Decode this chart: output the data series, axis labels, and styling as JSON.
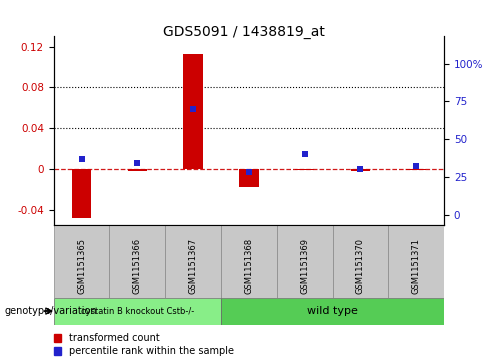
{
  "title": "GDS5091 / 1438819_at",
  "samples": [
    "GSM1151365",
    "GSM1151366",
    "GSM1151367",
    "GSM1151368",
    "GSM1151369",
    "GSM1151370",
    "GSM1151371"
  ],
  "transformed_count": [
    -0.048,
    -0.002,
    0.113,
    -0.018,
    -0.001,
    -0.002,
    -0.001
  ],
  "percentile_rank": [
    37,
    34,
    70,
    28,
    40,
    30,
    32
  ],
  "bar_color": "#cc0000",
  "dot_color": "#2222cc",
  "left_ylim": [
    -0.055,
    0.13
  ],
  "left_yticks": [
    -0.04,
    0.0,
    0.04,
    0.08,
    0.12
  ],
  "right_ylim": [
    -6.875,
    118.125
  ],
  "right_yticks": [
    0,
    25,
    50,
    75,
    100
  ],
  "right_yticklabels": [
    "0",
    "25",
    "50",
    "75",
    "100%"
  ],
  "dotted_lines": [
    0.04,
    0.08
  ],
  "group1_label": "cystatin B knockout Cstb-/-",
  "group2_label": "wild type",
  "group1_indices": [
    0,
    1,
    2
  ],
  "group2_indices": [
    3,
    4,
    5,
    6
  ],
  "group1_color": "#88ee88",
  "group2_color": "#55cc55",
  "legend_label1": "transformed count",
  "legend_label2": "percentile rank within the sample",
  "bar_width": 0.35,
  "genotype_label": "genotype/variation",
  "sample_box_color": "#c8c8c8"
}
